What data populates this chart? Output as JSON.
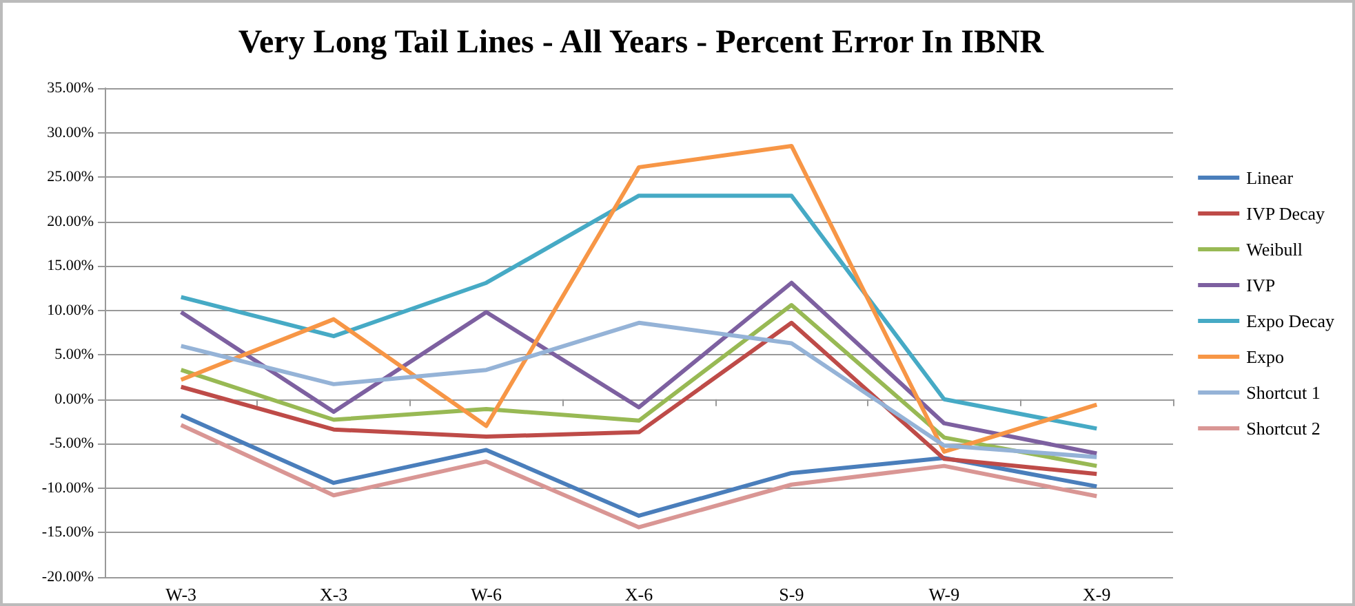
{
  "chart_data": {
    "type": "line",
    "title": "Very Long Tail Lines - All Years - Percent Error In IBNR",
    "categories": [
      "W-3",
      "X-3",
      "W-6",
      "X-6",
      "S-9",
      "W-9",
      "X-9"
    ],
    "series": [
      {
        "name": "Linear",
        "color": "#4a7ebb",
        "values": [
          -1.8,
          -9.4,
          -5.7,
          -13.1,
          -8.3,
          -6.6,
          -9.8
        ]
      },
      {
        "name": "IVP Decay",
        "color": "#be4b48",
        "values": [
          1.4,
          -3.4,
          -4.2,
          -3.7,
          8.6,
          -6.7,
          -8.4
        ]
      },
      {
        "name": "Weibull",
        "color": "#98b954",
        "values": [
          3.3,
          -2.3,
          -1.1,
          -2.4,
          10.6,
          -4.3,
          -7.5
        ]
      },
      {
        "name": "IVP",
        "color": "#7d60a0",
        "values": [
          9.8,
          -1.4,
          9.8,
          -0.9,
          13.1,
          -2.7,
          -6.1
        ]
      },
      {
        "name": "Expo Decay",
        "color": "#46aac5",
        "values": [
          11.5,
          7.1,
          13.1,
          22.9,
          22.9,
          0.0,
          -3.3
        ]
      },
      {
        "name": "Expo",
        "color": "#f79646",
        "values": [
          2.2,
          9.0,
          -3.0,
          26.1,
          28.5,
          -5.9,
          -0.6
        ]
      },
      {
        "name": "Shortcut 1",
        "color": "#95b3d7",
        "values": [
          6.0,
          1.7,
          3.3,
          8.6,
          6.3,
          -5.2,
          -6.5
        ]
      },
      {
        "name": "Shortcut 2",
        "color": "#d99694",
        "values": [
          -2.9,
          -10.8,
          -7.0,
          -14.4,
          -9.6,
          -7.5,
          -10.9
        ]
      }
    ],
    "ylim": [
      -20,
      35
    ],
    "yticks": [
      {
        "value": -20,
        "label": "-20.00%"
      },
      {
        "value": -15,
        "label": "-15.00%"
      },
      {
        "value": -10,
        "label": "-10.00%"
      },
      {
        "value": -5,
        "label": "-5.00%"
      },
      {
        "value": 0,
        "label": "0.00%"
      },
      {
        "value": 5,
        "label": "5.00%"
      },
      {
        "value": 10,
        "label": "10.00%"
      },
      {
        "value": 15,
        "label": "15.00%"
      },
      {
        "value": 20,
        "label": "20.00%"
      },
      {
        "value": 25,
        "label": "25.00%"
      },
      {
        "value": 30,
        "label": "30.00%"
      },
      {
        "value": 35,
        "label": "35.00%"
      }
    ],
    "grid": "y",
    "legend": "right",
    "marker": "none",
    "line_style": "solid"
  }
}
